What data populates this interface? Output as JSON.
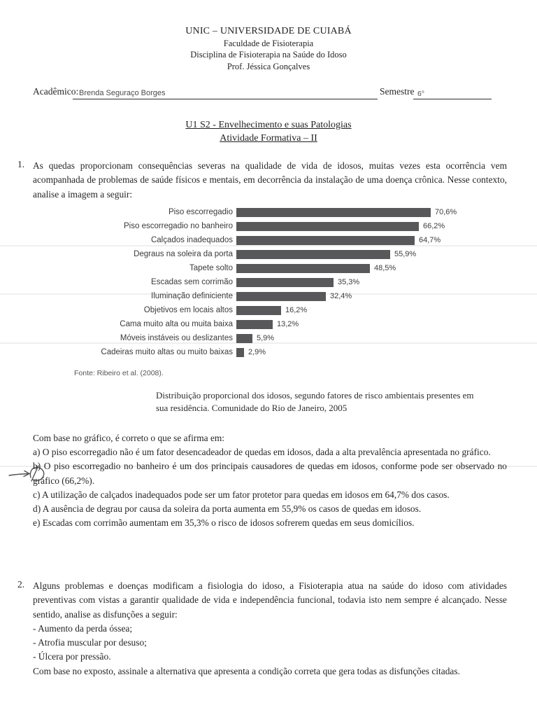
{
  "header": {
    "lines": [
      "UNIC – UNIVERSIDADE DE CUIABÁ",
      "Faculdade de Fisioterapia",
      "Disciplina de Fisioterapia na Saúde do Idoso",
      "Prof. Jéssica Gonçalves"
    ]
  },
  "student": {
    "label": "Acadêmico:",
    "name": "Brenda Seguraço Borges",
    "semester_label": "Semestre",
    "semester_value": "6°"
  },
  "title": {
    "line1": "U1 S2 - Envelhecimento e suas Patologias",
    "line2": "Atividade Formativa – II"
  },
  "question1": {
    "number": "1.",
    "text": "As quedas proporcionam consequências severas na qualidade de vida de idosos, muitas vezes esta ocorrência vem acompanhada de problemas de saúde físicos e mentais, em decorrência da instalação de uma doença crônica. Nesse contexto, analise a imagem a seguir:",
    "stem": "Com base no gráfico, é correto o que se afirma em:",
    "options": [
      "a) O piso escorregadio não é um fator desencadeador de quedas em idosos, dada a alta prevalência apresentada no gráfico.",
      "b) O piso escorregadio no banheiro é um dos principais causadores de quedas em idosos, conforme pode ser observado no gráfico (66,2%).",
      "c) A utilização de calçados inadequados pode ser um fator protetor para quedas em idosos em 64,7% dos casos.",
      "d) A ausência de degrau por causa da soleira da porta aumenta em 55,9% os casos de quedas em idosos.",
      "e) Escadas com corrimão aumentam em 35,3% o risco de idosos sofrerem quedas em seus domicílios."
    ],
    "marked_option": "b"
  },
  "chart_data": {
    "type": "bar",
    "orientation": "horizontal",
    "title": "Distribuição proporcional dos idosos, segundo fatores de risco ambientais presentes em sua residência. Comunidade do Rio de Janeiro, 2005",
    "source": "Fonte: Ribeiro et al. (2008).",
    "categories": [
      "Piso escorregadio",
      "Piso escorregadio no banheiro",
      "Calçados inadequados",
      "Degraus na soleira da porta",
      "Tapete solto",
      "Escadas sem corrimão",
      "Iluminação definiciente",
      "Objetivos em locais altos",
      "Cama muito alta ou muita baixa",
      "Móveis instáveis ou deslizantes",
      "Cadeiras muito altas ou muito baixas"
    ],
    "values": [
      70.6,
      66.2,
      64.7,
      55.9,
      48.5,
      35.3,
      32.4,
      16.2,
      13.2,
      5.9,
      2.9
    ],
    "value_labels": [
      "70,6%",
      "66,2%",
      "64,7%",
      "55,9%",
      "48,5%",
      "35,3%",
      "32,4%",
      "16,2%",
      "13,2%",
      "5,9%",
      "2,9%"
    ],
    "bar_color": "#58585a",
    "xlim": [
      0,
      75
    ],
    "grid": false,
    "legend": false
  },
  "question2": {
    "number": "2.",
    "intro": "Alguns problemas e doenças modificam a fisiologia do idoso, a Fisioterapia atua na saúde do idoso com atividades preventivas com vistas a garantir qualidade de vida e independência funcional, todavia isto nem sempre é alcançado. Nesse sentido, analise as disfunções a seguir:",
    "items": [
      "- Aumento da perda óssea;",
      "- Atrofia muscular por desuso;",
      "- Úlcera por pressão."
    ],
    "closing": "Com base no exposto, assinale a alternativa que apresenta a condição correta que gera todas as disfunções citadas."
  }
}
